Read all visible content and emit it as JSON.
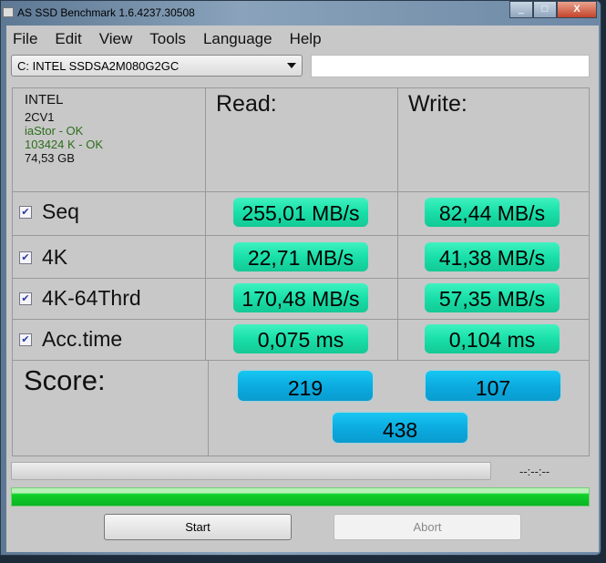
{
  "window": {
    "title": "AS SSD Benchmark 1.6.4237.30508",
    "close": "X"
  },
  "menu": [
    "File",
    "Edit",
    "View",
    "Tools",
    "Language",
    "Help"
  ],
  "drive_select": {
    "value": "C: INTEL SSDSA2M080G2GC"
  },
  "text_field": {
    "value": ""
  },
  "drive_info": {
    "vendor": "INTEL",
    "firmware": "2CV1",
    "driver": "iaStor - OK",
    "alignment": "103424 K - OK",
    "size": "74,53 GB"
  },
  "headers": {
    "read": "Read:",
    "write": "Write:"
  },
  "rows": [
    {
      "label": "Seq",
      "checked": true,
      "read": "255,01 MB/s",
      "write": "82,44 MB/s"
    },
    {
      "label": "4K",
      "checked": true,
      "read": "22,71 MB/s",
      "write": "41,38 MB/s"
    },
    {
      "label": "4K-64Thrd",
      "checked": true,
      "read": "170,48 MB/s",
      "write": "57,35 MB/s"
    },
    {
      "label": "Acc.time",
      "checked": true,
      "read": "0,075 ms",
      "write": "0,104 ms"
    }
  ],
  "score": {
    "label": "Score:",
    "read": "219",
    "write": "107",
    "total": "438"
  },
  "progress": {
    "value_percent": 0,
    "timer": "--:--:--"
  },
  "status_bar": {
    "value_percent": 100
  },
  "buttons": {
    "start": "Start",
    "abort": "Abort"
  },
  "colors": {
    "result": "#19dfa8",
    "score": "#0ba9de",
    "status": "#0fd12a"
  }
}
